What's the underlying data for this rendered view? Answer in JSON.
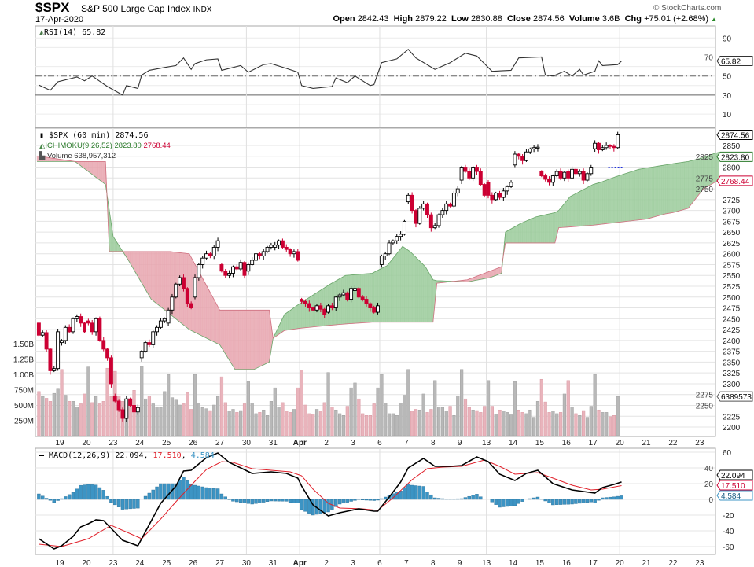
{
  "header": {
    "symbol": "$SPX",
    "name": "S&P 500 Large Cap Index",
    "exchange": "INDX",
    "date": "17-Apr-2020",
    "watermark": "© StockCharts.com",
    "open_label": "Open",
    "open": "2842.43",
    "high_label": "High",
    "high": "2879.22",
    "low_label": "Low",
    "low": "2830.88",
    "close_label": "Close",
    "close": "2874.56",
    "volume_label": "Volume",
    "volume": "3.6B",
    "chg_label": "Chg",
    "chg": "+75.01 (+2.68%)",
    "chg_arrow": "▲"
  },
  "rsi": {
    "legend": "RSI(14) 65.82",
    "tag": "65.82"
  },
  "main": {
    "price_legend": "$SPX (60 min) 2874.56",
    "ichimoku_label": "ICHIMOKU(9,26,52)",
    "ichimoku_a": "2823.80",
    "ichimoku_b": "2768.44",
    "volume_legend": "Volume 638,957,312",
    "price_tag": "2874.56",
    "span_a_tag": "2823.80",
    "span_b_tag": "2768.44",
    "volume_tag": "6389573"
  },
  "macd": {
    "legend_name": "MACD(12,26,9)",
    "macd_value": "22.094",
    "signal_value": "17.510",
    "hist_value": "4.584",
    "macd_tag": "22.094",
    "signal_tag": "17.510",
    "hist_tag": "4.584"
  },
  "colors": {
    "up": "#000000",
    "down": "#cc0033",
    "cloud_green": "#9ccc9c",
    "cloud_red": "#e8a6b0",
    "vol_up": "#b8b8b8",
    "vol_down": "#e9b4bc",
    "macd": "#000000",
    "signal": "#e0202a",
    "hist": "#3c94c4"
  },
  "chart_data": {
    "type": "candlestick",
    "title": "$SPX S&P 500 Large Cap Index (60 min)",
    "interval": "60 min",
    "x_labels": [
      "19",
      "20",
      "23",
      "24",
      "25",
      "26",
      "27",
      "30",
      "31",
      "Apr",
      "2",
      "3",
      "6",
      "7",
      "8",
      "9",
      "13",
      "14",
      "15",
      "16",
      "17",
      "20",
      "21",
      "22",
      "23"
    ],
    "price_ticks": [
      2200,
      2225,
      2250,
      2275,
      2300,
      2325,
      2350,
      2375,
      2400,
      2425,
      2450,
      2475,
      2500,
      2525,
      2550,
      2575,
      2600,
      2625,
      2650,
      2675,
      2700,
      2725,
      2750,
      2775,
      2800,
      2825,
      2850
    ],
    "volume_ticks": [
      [
        "1.50B",
        1500
      ],
      [
        "1.25B",
        1250
      ],
      [
        "1.00B",
        1000
      ],
      [
        "750M",
        750
      ],
      [
        "500M",
        500
      ],
      [
        "250M",
        250
      ]
    ],
    "rsi_ticks": [
      90,
      70,
      50,
      30,
      10
    ],
    "macd_ticks": [
      60,
      40,
      20,
      0,
      -20,
      -40,
      -60
    ],
    "blue_dashed_level": 2800,
    "days": [
      {
        "open": 2440,
        "closes": [
          2412,
          2418,
          2380,
          2330,
          2335,
          2420
        ],
        "volume_m": [
          720,
          640,
          610,
          560,
          690,
          760
        ]
      },
      {
        "open": 2395,
        "closes": [
          2400,
          2430,
          2420,
          2450,
          2455,
          2440,
          2420
        ],
        "volume_m": [
          1080,
          660,
          560,
          560,
          470,
          520,
          680
        ]
      },
      {
        "open": 2445,
        "closes": [
          2440,
          2420,
          2450,
          2400,
          2380,
          2360,
          2300
        ],
        "volume_m": [
          1120,
          540,
          640,
          520,
          560,
          1100,
          640
        ]
      },
      {
        "open": 2270,
        "closes": [
          2260,
          2240,
          2220,
          2265,
          2250,
          2235,
          2245
        ],
        "volume_m": [
          1050,
          650,
          560,
          520,
          500,
          740,
          430
        ]
      },
      {
        "open": 2360,
        "closes": [
          2375,
          2395,
          2390,
          2420,
          2430,
          2445,
          2450
        ],
        "volume_m": [
          1130,
          600,
          650,
          520,
          470,
          460,
          720
        ]
      },
      {
        "open": 2440,
        "closes": [
          2470,
          2500,
          2530,
          2545,
          2520,
          2485,
          2475
        ],
        "volume_m": [
          1000,
          620,
          580,
          500,
          520,
          700,
          430
        ]
      },
      {
        "open": 2500,
        "closes": [
          2545,
          2575,
          2590,
          2600,
          2595,
          2615,
          2630
        ],
        "volume_m": [
          1000,
          520,
          460,
          440,
          410,
          500,
          640
        ]
      },
      {
        "open": 2575,
        "closes": [
          2560,
          2550,
          2555,
          2570,
          2565,
          2580,
          2550
        ],
        "volume_m": [
          960,
          540,
          400,
          430,
          380,
          410,
          520
        ]
      },
      {
        "open": 2560,
        "closes": [
          2575,
          2585,
          2600,
          2595,
          2605,
          2615,
          2620
        ],
        "volume_m": [
          880,
          530,
          360,
          380,
          420,
          330,
          560
        ]
      },
      {
        "open": 2615,
        "closes": [
          2620,
          2630,
          2615,
          2610,
          2600,
          2605,
          2585
        ],
        "volume_m": [
          780,
          470,
          540,
          400,
          380,
          430,
          780
        ]
      },
      {
        "open": 2495,
        "closes": [
          2490,
          2485,
          2475,
          2470,
          2480,
          2472,
          2460
        ],
        "volume_m": [
          1070,
          500,
          360,
          350,
          430,
          400,
          540
        ]
      },
      {
        "open": 2465,
        "closes": [
          2480,
          2475,
          2500,
          2505,
          2510,
          2495,
          2520
        ],
        "volume_m": [
          1030,
          470,
          420,
          360,
          330,
          480,
          780
        ]
      },
      {
        "open": 2515,
        "closes": [
          2520,
          2500,
          2495,
          2485,
          2475,
          2465,
          2480
        ],
        "volume_m": [
          860,
          600,
          360,
          330,
          330,
          520,
          780
        ]
      },
      {
        "open": 2575,
        "closes": [
          2595,
          2600,
          2625,
          2630,
          2640,
          2645,
          2675
        ],
        "volume_m": [
          1000,
          530,
          360,
          360,
          330,
          530,
          660
        ]
      },
      {
        "open": 2720,
        "closes": [
          2735,
          2700,
          2670,
          2705,
          2715,
          2690,
          2660
        ],
        "volume_m": [
          1080,
          400,
          430,
          420,
          680,
          380,
          430
        ]
      },
      {
        "open": 2660,
        "closes": [
          2665,
          2690,
          2700,
          2715,
          2710,
          2740,
          2750
        ],
        "volume_m": [
          900,
          470,
          460,
          400,
          480,
          330,
          650
        ]
      },
      {
        "open": 2770,
        "closes": [
          2800,
          2790,
          2775,
          2800,
          2790,
          2760,
          2735
        ],
        "volume_m": [
          1080,
          600,
          460,
          420,
          410,
          380,
          480
        ]
      },
      {
        "open": 2765,
        "closes": [
          2735,
          2725,
          2740,
          2730,
          2745,
          2755,
          2765
        ],
        "volume_m": [
          900,
          480,
          350,
          420,
          400,
          380,
          340
        ]
      },
      {
        "open": 2805,
        "closes": [
          2830,
          2825,
          2815,
          2835,
          2842,
          2845,
          2846
        ],
        "volume_m": [
          880,
          420,
          380,
          360,
          420,
          300,
          560
        ]
      },
      {
        "open": 2790,
        "closes": [
          2780,
          2772,
          2765,
          2780,
          2790,
          2775,
          2788
        ],
        "volume_m": [
          920,
          550,
          380,
          400,
          360,
          380,
          680
        ]
      },
      {
        "open": 2790,
        "closes": [
          2775,
          2795,
          2785,
          2790,
          2770,
          2785,
          2800
        ],
        "volume_m": [
          900,
          470,
          360,
          330,
          410,
          300,
          480
        ]
      },
      {
        "open": 2842.43,
        "closes": [
          2855,
          2840,
          2845,
          2850,
          2848,
          2845,
          2874.56
        ],
        "volume_m": [
          1000,
          420,
          380,
          380,
          310,
          330,
          639
        ]
      }
    ],
    "ichimoku_cloud": {
      "note": "points are [bar_index, span_a, span_b]",
      "points": [
        [
          0,
          2813,
          2826
        ],
        [
          10,
          2813,
          2813
        ],
        [
          18,
          2760,
          2813
        ],
        [
          19,
          2700,
          2605
        ],
        [
          20,
          2640,
          2605
        ],
        [
          24,
          2585,
          2605
        ],
        [
          30,
          2495,
          2605
        ],
        [
          35,
          2460,
          2605
        ],
        [
          40,
          2425,
          2600
        ],
        [
          48,
          2390,
          2470
        ],
        [
          52,
          2333,
          2470
        ],
        [
          57,
          2333,
          2470
        ],
        [
          61,
          2350,
          2470
        ],
        [
          62,
          2405,
          2405
        ],
        [
          65,
          2460,
          2423
        ],
        [
          69,
          2485,
          2428
        ],
        [
          77,
          2530,
          2435
        ],
        [
          81,
          2550,
          2438
        ],
        [
          88,
          2555,
          2442
        ],
        [
          92,
          2573,
          2442
        ],
        [
          96,
          2617,
          2442
        ],
        [
          98,
          2605,
          2442
        ],
        [
          102,
          2570,
          2442
        ],
        [
          104,
          2540,
          2442
        ],
        [
          105,
          2538,
          2532
        ],
        [
          113,
          2535,
          2540
        ],
        [
          119,
          2545,
          2560
        ],
        [
          122,
          2555,
          2570
        ],
        [
          123,
          2650,
          2625
        ],
        [
          127,
          2670,
          2625
        ],
        [
          131,
          2685,
          2625
        ],
        [
          136,
          2695,
          2625
        ],
        [
          137,
          2700,
          2660
        ],
        [
          140,
          2732,
          2662
        ],
        [
          146,
          2760,
          2666
        ],
        [
          148,
          2765,
          2668
        ],
        [
          152,
          2778,
          2672
        ],
        [
          158,
          2795,
          2678
        ],
        [
          160,
          2798,
          2680
        ],
        [
          165,
          2805,
          2692
        ],
        [
          167,
          2808,
          2695
        ],
        [
          171,
          2813,
          2705
        ],
        [
          175,
          2822,
          2750
        ],
        [
          178,
          2832,
          2765
        ],
        [
          179,
          2834,
          2768.44
        ]
      ]
    },
    "rsi_points": [
      [
        0,
        40.6
      ],
      [
        3,
        35
      ],
      [
        5,
        44
      ],
      [
        10,
        49
      ],
      [
        12,
        45
      ],
      [
        14,
        50
      ],
      [
        18,
        39
      ],
      [
        22,
        30
      ],
      [
        23,
        40
      ],
      [
        26,
        37
      ],
      [
        27,
        51
      ],
      [
        29,
        56
      ],
      [
        33,
        59
      ],
      [
        36,
        61
      ],
      [
        38,
        69
      ],
      [
        40,
        57
      ],
      [
        41,
        63
      ],
      [
        44,
        67
      ],
      [
        47,
        68
      ],
      [
        48,
        56
      ],
      [
        53,
        61
      ],
      [
        55,
        54
      ],
      [
        59,
        62
      ],
      [
        61,
        63
      ],
      [
        65,
        58
      ],
      [
        68,
        54
      ],
      [
        69,
        40
      ],
      [
        72,
        37
      ],
      [
        77,
        39
      ],
      [
        78,
        48
      ],
      [
        81,
        43
      ],
      [
        83,
        50
      ],
      [
        87,
        40
      ],
      [
        88,
        41
      ],
      [
        90,
        64
      ],
      [
        94,
        68
      ],
      [
        97,
        78
      ],
      [
        99,
        69
      ],
      [
        104,
        57
      ],
      [
        108,
        64
      ],
      [
        112,
        74
      ],
      [
        115,
        71
      ],
      [
        119,
        55
      ],
      [
        124,
        56
      ],
      [
        126,
        69
      ],
      [
        132,
        70
      ],
      [
        133,
        51
      ],
      [
        135,
        50
      ],
      [
        138,
        55
      ],
      [
        140,
        50
      ],
      [
        142,
        57
      ],
      [
        143,
        51
      ],
      [
        146,
        55
      ],
      [
        147,
        66
      ],
      [
        148,
        61
      ],
      [
        152,
        62
      ],
      [
        153,
        65.82
      ]
    ],
    "macd_points": [
      [
        0,
        -50
      ],
      [
        4,
        -63
      ],
      [
        6,
        -59
      ],
      [
        9,
        -47
      ],
      [
        11,
        -35
      ],
      [
        13,
        -31
      ],
      [
        15,
        -26
      ],
      [
        17,
        -27
      ],
      [
        19,
        -37
      ],
      [
        22,
        -52
      ],
      [
        26,
        -59
      ],
      [
        29,
        -32
      ],
      [
        32,
        -5
      ],
      [
        36,
        17
      ],
      [
        38,
        36
      ],
      [
        40,
        37
      ],
      [
        44,
        53
      ],
      [
        47,
        59
      ],
      [
        50,
        47
      ],
      [
        53,
        40
      ],
      [
        56,
        33
      ],
      [
        61,
        35
      ],
      [
        65,
        33
      ],
      [
        68,
        27
      ],
      [
        69,
        17
      ],
      [
        72,
        -7
      ],
      [
        76,
        -21
      ],
      [
        79,
        -17
      ],
      [
        84,
        -12
      ],
      [
        88,
        -15
      ],
      [
        89,
        -15
      ],
      [
        92,
        3
      ],
      [
        95,
        22
      ],
      [
        97,
        40
      ],
      [
        101,
        52
      ],
      [
        104,
        42
      ],
      [
        108,
        42
      ],
      [
        111,
        43
      ],
      [
        115,
        54
      ],
      [
        118,
        48
      ],
      [
        121,
        32
      ],
      [
        125,
        24
      ],
      [
        128,
        33
      ],
      [
        131,
        37
      ],
      [
        135,
        20
      ],
      [
        140,
        12
      ],
      [
        143,
        10
      ],
      [
        146,
        8
      ],
      [
        148,
        15
      ],
      [
        151,
        19
      ],
      [
        153,
        22.094
      ]
    ],
    "signal_points": [
      [
        0,
        -57
      ],
      [
        6,
        -60
      ],
      [
        13,
        -50
      ],
      [
        19,
        -33
      ],
      [
        27,
        -50
      ],
      [
        32,
        -25
      ],
      [
        36,
        -3
      ],
      [
        40,
        18
      ],
      [
        44,
        38
      ],
      [
        48,
        48
      ],
      [
        51,
        47
      ],
      [
        56,
        39
      ],
      [
        61,
        37
      ],
      [
        66,
        35
      ],
      [
        69,
        30
      ],
      [
        72,
        13
      ],
      [
        76,
        -5
      ],
      [
        79,
        -11
      ],
      [
        85,
        -12
      ],
      [
        89,
        -14
      ],
      [
        93,
        2
      ],
      [
        98,
        25
      ],
      [
        102,
        39
      ],
      [
        106,
        41
      ],
      [
        111,
        42
      ],
      [
        117,
        50
      ],
      [
        121,
        42
      ],
      [
        125,
        32
      ],
      [
        131,
        34
      ],
      [
        135,
        27
      ],
      [
        140,
        18
      ],
      [
        145,
        12
      ],
      [
        148,
        13
      ],
      [
        153,
        17.51
      ]
    ]
  }
}
